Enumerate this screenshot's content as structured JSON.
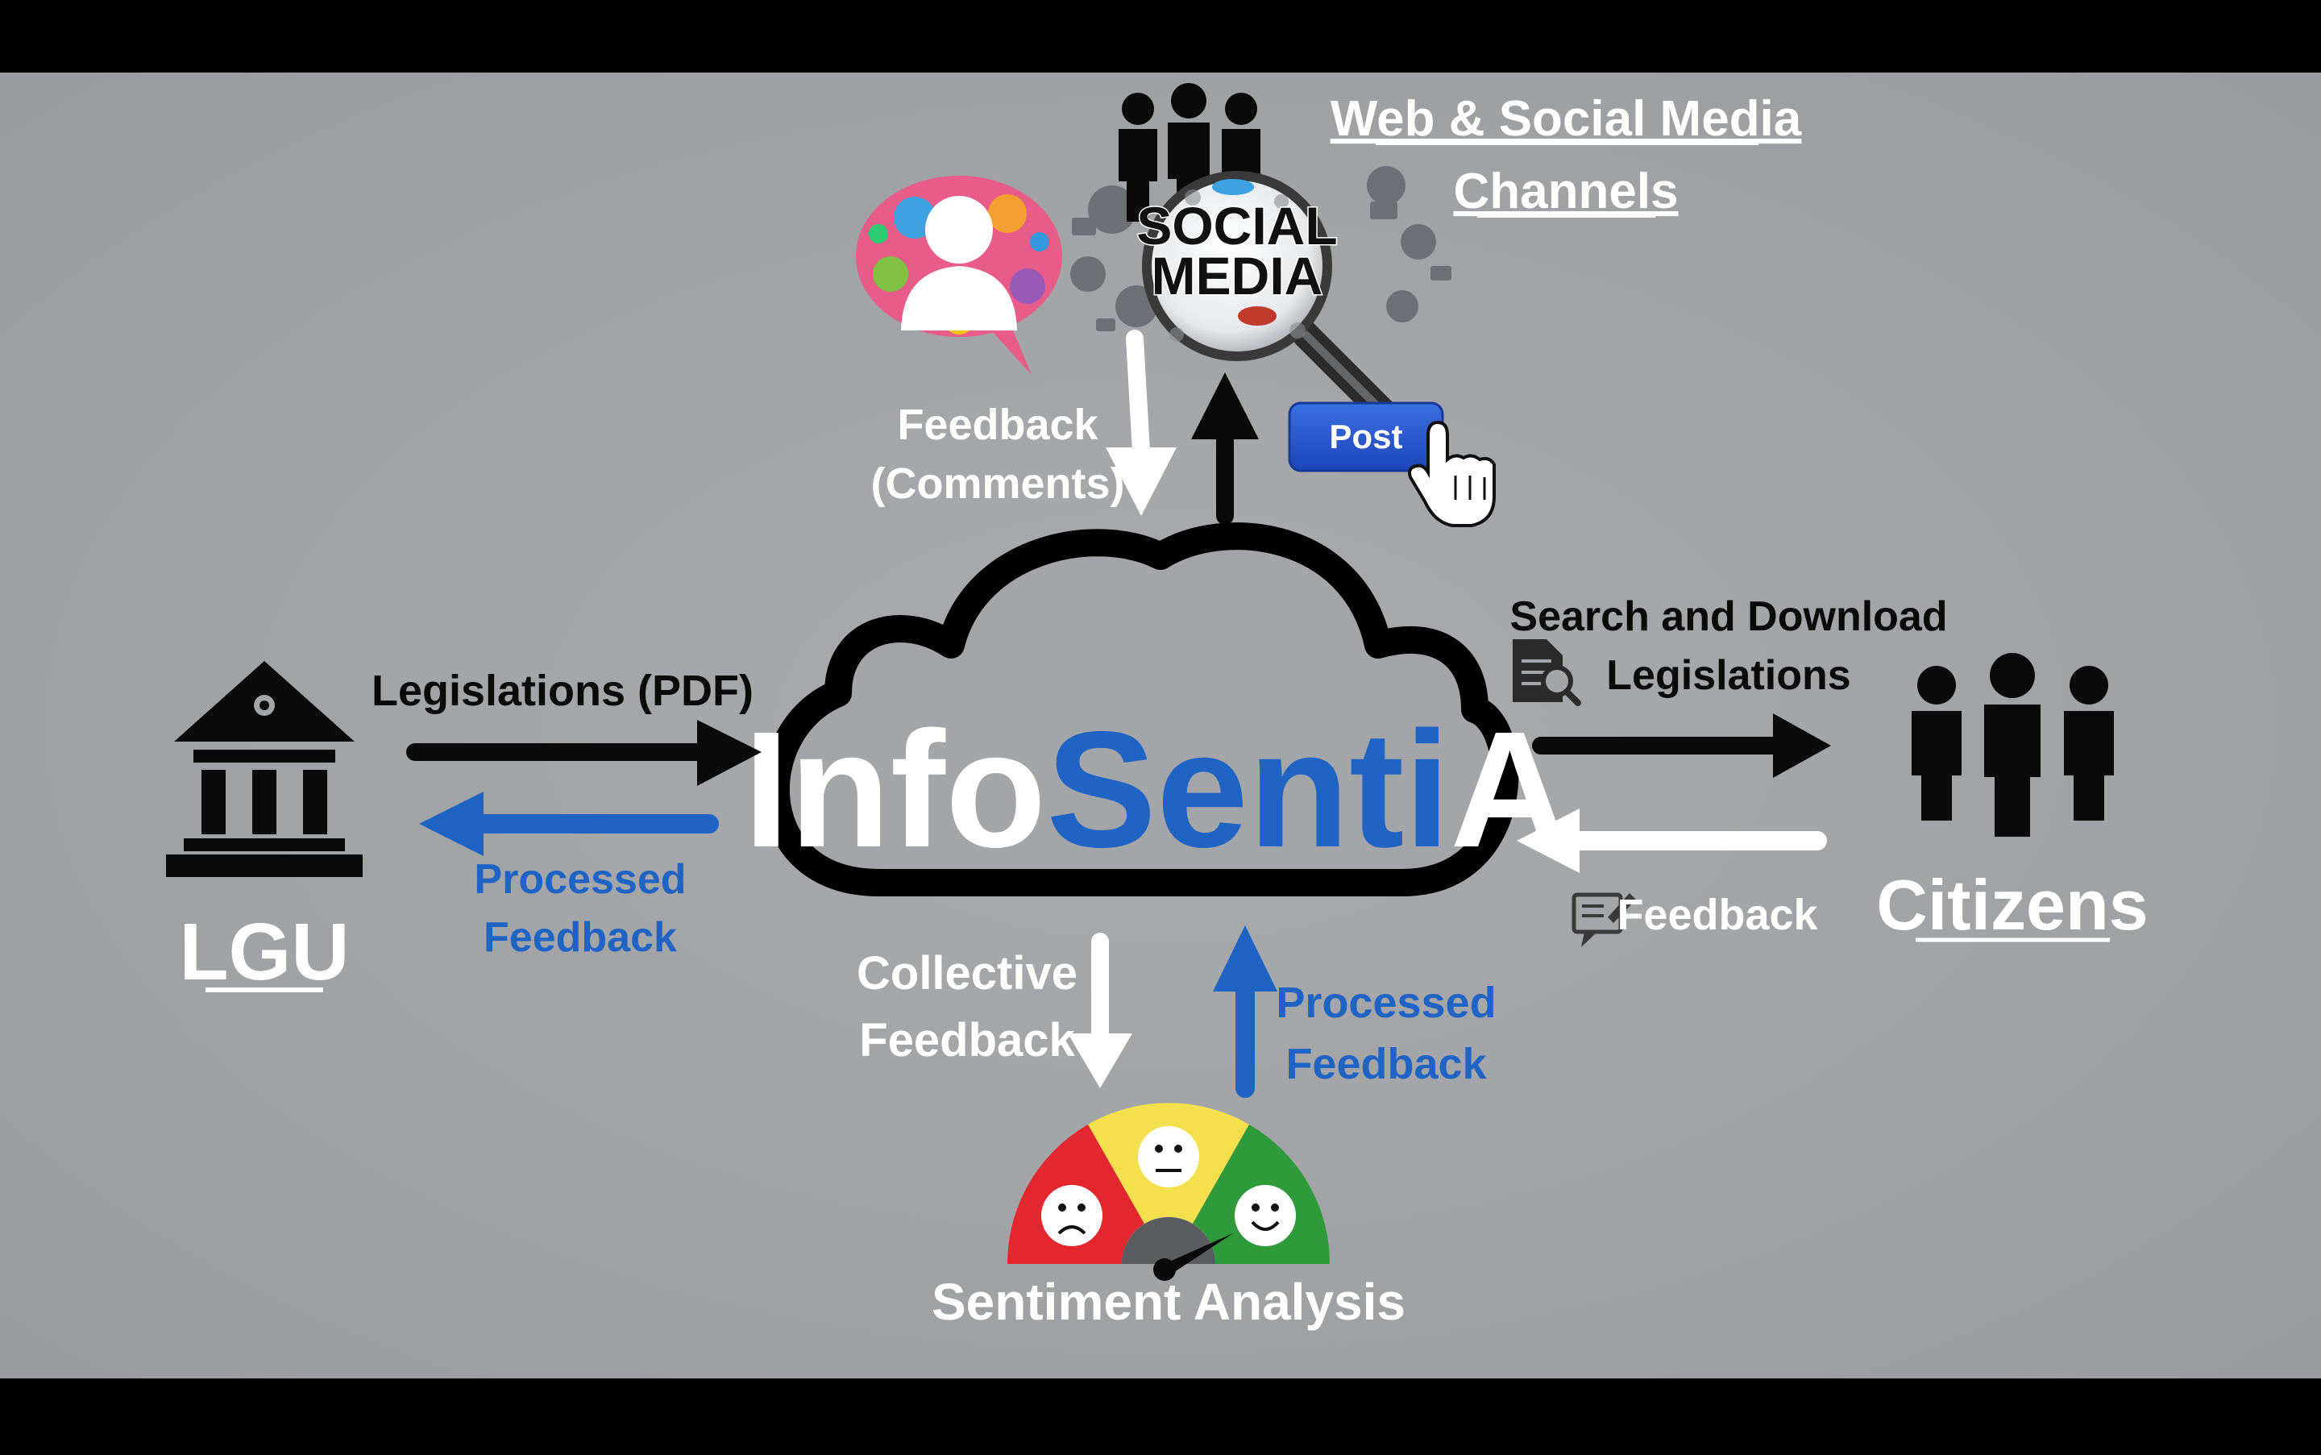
{
  "channels": {
    "title_line1": "Web & Social Media",
    "title_line2": "Channels",
    "magnifier_line1": "SOCIAL",
    "magnifier_line2": "MEDIA",
    "post_button": "Post"
  },
  "top_feedback": {
    "line1": "Feedback",
    "line2": "(Comments)"
  },
  "cloud": {
    "parts": [
      "Info",
      "Senti",
      "A"
    ]
  },
  "lgu": {
    "label": "LGU",
    "legislations": "Legislations (PDF)",
    "processed_line1": "Processed",
    "processed_line2": "Feedback"
  },
  "citizens": {
    "label": "Citizens",
    "search_line1": "Search and Download",
    "search_line2": "Legislations",
    "feedback": "Feedback"
  },
  "bottom": {
    "collective_line1": "Collective",
    "collective_line2": "Feedback",
    "processed_line1": "Processed",
    "processed_line2": "Feedback",
    "sentiment_label": "Sentiment Analysis"
  },
  "colors": {
    "background": "#a3a5a8",
    "blue": "#1f63c4",
    "white": "#ffffff",
    "black": "#0a0a0a",
    "gauge_red": "#e3272e",
    "gauge_yellow": "#f4e04d",
    "gauge_green": "#2f9a3a",
    "post_button": "#2a55c8"
  }
}
